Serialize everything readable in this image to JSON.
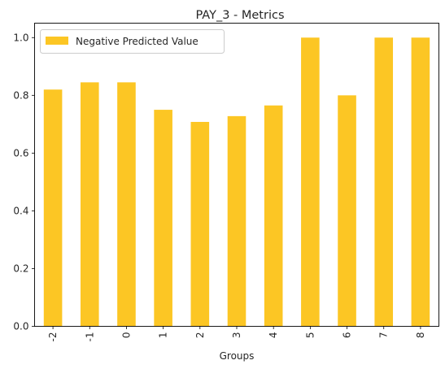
{
  "chart_data": {
    "type": "bar",
    "title": "PAY_3 - Metrics",
    "xlabel": "Groups",
    "ylabel": "",
    "categories": [
      "-2",
      "-1",
      "0",
      "1",
      "2",
      "3",
      "4",
      "5",
      "6",
      "7",
      "8"
    ],
    "series": [
      {
        "name": "Negative Predicted Value",
        "values": [
          0.82,
          0.845,
          0.845,
          0.75,
          0.708,
          0.728,
          0.765,
          1.0,
          0.8,
          1.0,
          1.0
        ],
        "color": "#fcc624"
      }
    ],
    "ylim": [
      0,
      1.05
    ],
    "yticks": [
      "0.0",
      "0.2",
      "0.4",
      "0.6",
      "0.8",
      "1.0"
    ],
    "grid": false,
    "legend_position": "top-left"
  }
}
